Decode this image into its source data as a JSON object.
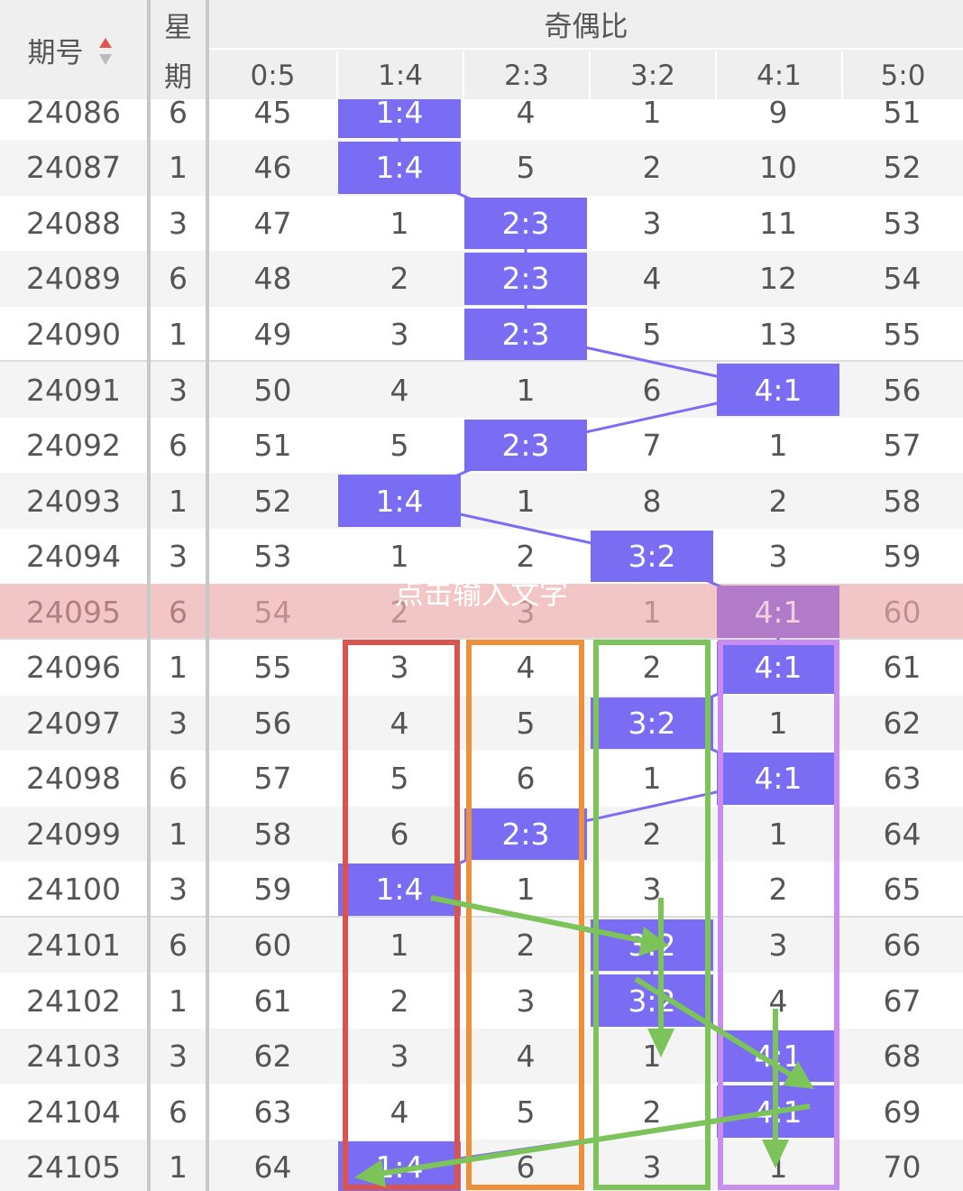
{
  "header": {
    "issue": "期号",
    "weekday": [
      "星",
      "期"
    ],
    "group": "奇偶比",
    "columns": [
      "0:5",
      "1:4",
      "2:3",
      "3:2",
      "4:1",
      "5:0"
    ]
  },
  "rows": [
    {
      "issue": "24086",
      "weekday": "6",
      "cells": [
        "45",
        "1:4",
        "4",
        "1",
        "9",
        "51"
      ]
    },
    {
      "issue": "24087",
      "weekday": "1",
      "cells": [
        "46",
        "1:4",
        "5",
        "2",
        "10",
        "52"
      ]
    },
    {
      "issue": "24088",
      "weekday": "3",
      "cells": [
        "47",
        "1",
        "2:3",
        "3",
        "11",
        "53"
      ]
    },
    {
      "issue": "24089",
      "weekday": "6",
      "cells": [
        "48",
        "2",
        "2:3",
        "4",
        "12",
        "54"
      ]
    },
    {
      "issue": "24090",
      "weekday": "1",
      "cells": [
        "49",
        "3",
        "2:3",
        "5",
        "13",
        "55"
      ]
    },
    {
      "issue": "24091",
      "weekday": "3",
      "cells": [
        "50",
        "4",
        "1",
        "6",
        "4:1",
        "56"
      ]
    },
    {
      "issue": "24092",
      "weekday": "6",
      "cells": [
        "51",
        "5",
        "2:3",
        "7",
        "1",
        "57"
      ]
    },
    {
      "issue": "24093",
      "weekday": "1",
      "cells": [
        "52",
        "1:4",
        "1",
        "8",
        "2",
        "58"
      ]
    },
    {
      "issue": "24094",
      "weekday": "3",
      "cells": [
        "53",
        "1",
        "2",
        "3:2",
        "3",
        "59"
      ]
    },
    {
      "issue": "24095",
      "weekday": "6",
      "cells": [
        "54",
        "2",
        "3",
        "1",
        "4:1",
        "60"
      ]
    },
    {
      "issue": "24096",
      "weekday": "1",
      "cells": [
        "55",
        "3",
        "4",
        "2",
        "4:1",
        "61"
      ]
    },
    {
      "issue": "24097",
      "weekday": "3",
      "cells": [
        "56",
        "4",
        "5",
        "3:2",
        "1",
        "62"
      ]
    },
    {
      "issue": "24098",
      "weekday": "6",
      "cells": [
        "57",
        "5",
        "6",
        "1",
        "4:1",
        "63"
      ]
    },
    {
      "issue": "24099",
      "weekday": "1",
      "cells": [
        "58",
        "6",
        "2:3",
        "2",
        "1",
        "64"
      ]
    },
    {
      "issue": "24100",
      "weekday": "3",
      "cells": [
        "59",
        "1:4",
        "1",
        "3",
        "2",
        "65"
      ]
    },
    {
      "issue": "24101",
      "weekday": "6",
      "cells": [
        "60",
        "1",
        "2",
        "3:2",
        "3",
        "66"
      ]
    },
    {
      "issue": "24102",
      "weekday": "1",
      "cells": [
        "61",
        "2",
        "3",
        "3:2",
        "4",
        "67"
      ]
    },
    {
      "issue": "24103",
      "weekday": "3",
      "cells": [
        "62",
        "3",
        "4",
        "1",
        "4:1",
        "68"
      ]
    },
    {
      "issue": "24104",
      "weekday": "6",
      "cells": [
        "63",
        "4",
        "5",
        "2",
        "4:1",
        "69"
      ]
    },
    {
      "issue": "24105",
      "weekday": "1",
      "cells": [
        "64",
        "1:4",
        "6",
        "3",
        "1",
        "70"
      ]
    }
  ],
  "annotation": "点击输入文字"
}
